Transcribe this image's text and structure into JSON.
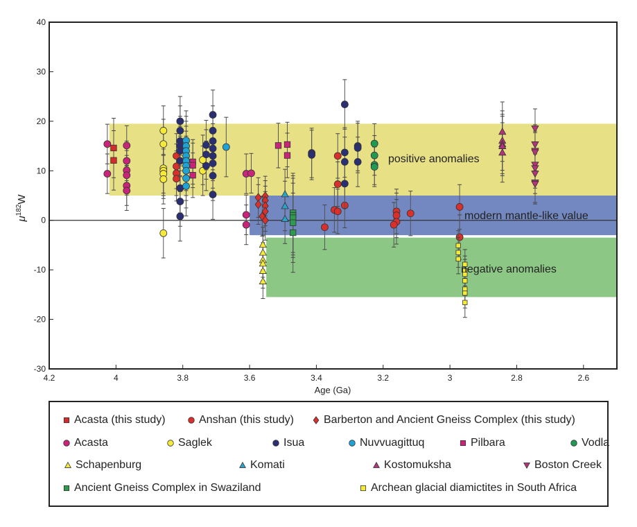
{
  "chart_data": {
    "type": "scatter",
    "title": "",
    "xlabel": "Age (Ga)",
    "ylabel": "μ182W",
    "ylabel_main": "μ",
    "ylabel_sup": "182",
    "ylabel_tail": "W",
    "xlim": [
      4.2,
      2.5
    ],
    "x_reversed": true,
    "ylim": [
      -30,
      40
    ],
    "xticks": [
      "4.2",
      "4",
      "3.8",
      "3.6",
      "3.4",
      "3.2",
      "3",
      "2.8",
      "2.6"
    ],
    "xtick_values": [
      4.2,
      4.0,
      3.8,
      3.6,
      3.4,
      3.2,
      3.0,
      2.8,
      2.6
    ],
    "yticks": [
      "-30",
      "-20",
      "-10",
      "0",
      "10",
      "20",
      "30",
      "40"
    ],
    "ytick_values": [
      -30,
      -20,
      -10,
      0,
      10,
      20,
      30,
      40
    ],
    "grid": false,
    "zero_line": true,
    "bands": [
      {
        "label": "positive anomalies",
        "x": [
          4.02,
          2.5
        ],
        "y": [
          5,
          19.5
        ],
        "color": "#e8e085"
      },
      {
        "label": "modern mantle-like value",
        "x": [
          3.6,
          2.5
        ],
        "y": [
          -3,
          5
        ],
        "color": "#7387c0"
      },
      {
        "label": "negative anomalies",
        "x": [
          3.55,
          2.5
        ],
        "y": [
          -15.5,
          -3.5
        ],
        "color": "#8dc785"
      }
    ],
    "legend_position": "below",
    "series": [
      {
        "name": "Acasta (this study)",
        "marker": "square",
        "color": "#d42b2b",
        "err": 6,
        "points": [
          [
            4.007,
            14.6
          ],
          [
            4.007,
            12.1
          ]
        ]
      },
      {
        "name": "Anshan (this study)",
        "marker": "circle",
        "color": "#d9302c",
        "err": 4.5,
        "points": [
          [
            3.819,
            13.0
          ],
          [
            3.819,
            10.9
          ],
          [
            3.819,
            9.5
          ],
          [
            3.819,
            8.4
          ],
          [
            3.375,
            -1.4
          ],
          [
            3.346,
            2.1
          ],
          [
            3.336,
            1.8
          ],
          [
            3.336,
            13.0
          ],
          [
            3.336,
            7.3
          ],
          [
            3.315,
            3.0
          ],
          [
            3.16,
            1.8
          ],
          [
            3.16,
            1.0
          ],
          [
            3.16,
            -0.3
          ],
          [
            3.168,
            -0.9
          ],
          [
            3.118,
            1.4
          ],
          [
            2.971,
            2.7
          ],
          [
            2.971,
            -3.4
          ]
        ]
      },
      {
        "name": "Barberton and Ancient Gneiss Complex (this study)",
        "marker": "diamond",
        "color": "#d9302c",
        "err": 4,
        "points": [
          [
            3.574,
            4.6
          ],
          [
            3.574,
            3.2
          ],
          [
            3.562,
            0.8
          ],
          [
            3.553,
            4.9
          ],
          [
            3.553,
            4.0
          ],
          [
            3.553,
            2.9
          ],
          [
            3.553,
            1.8
          ],
          [
            3.553,
            0.0
          ]
        ]
      },
      {
        "name": "Acasta",
        "marker": "circle",
        "color": "#c8257a",
        "err": 4,
        "points": [
          [
            4.026,
            15.4
          ],
          [
            4.026,
            9.4
          ],
          [
            3.968,
            15.1
          ],
          [
            3.968,
            12.0
          ],
          [
            3.968,
            10.1
          ],
          [
            3.968,
            9.1
          ],
          [
            3.968,
            7.0
          ],
          [
            3.968,
            6.0
          ],
          [
            3.61,
            9.4
          ],
          [
            3.61,
            1.1
          ],
          [
            3.61,
            -0.9
          ],
          [
            3.595,
            9.5
          ]
        ]
      },
      {
        "name": "Saglek",
        "marker": "circle",
        "color": "#f5e93a",
        "err": 5,
        "points": [
          [
            3.858,
            18.1
          ],
          [
            3.858,
            15.4
          ],
          [
            3.858,
            10.5
          ],
          [
            3.858,
            10.0
          ],
          [
            3.858,
            9.4
          ],
          [
            3.858,
            8.3
          ],
          [
            3.858,
            -2.6
          ],
          [
            3.74,
            12.2
          ],
          [
            3.74,
            10.0
          ]
        ]
      },
      {
        "name": "Isua",
        "marker": "circle",
        "color": "#2a2f73",
        "err": 5,
        "points": [
          [
            3.808,
            20.0
          ],
          [
            3.808,
            18.1
          ],
          [
            3.808,
            16.0
          ],
          [
            3.808,
            15.0
          ],
          [
            3.808,
            14.0
          ],
          [
            3.808,
            12.0
          ],
          [
            3.808,
            6.5
          ],
          [
            3.808,
            3.8
          ],
          [
            3.808,
            0.8
          ],
          [
            3.73,
            15.2
          ],
          [
            3.73,
            13.3
          ],
          [
            3.73,
            11.0
          ],
          [
            3.71,
            21.3
          ],
          [
            3.71,
            18.1
          ],
          [
            3.71,
            16.0
          ],
          [
            3.71,
            14.5
          ],
          [
            3.71,
            13.0
          ],
          [
            3.71,
            11.5
          ],
          [
            3.71,
            9.0
          ],
          [
            3.71,
            5.2
          ],
          [
            3.414,
            13.6
          ],
          [
            3.414,
            13.2
          ],
          [
            3.315,
            23.4
          ],
          [
            3.315,
            13.7
          ],
          [
            3.315,
            11.8
          ],
          [
            3.315,
            7.4
          ],
          [
            3.276,
            15.0
          ],
          [
            3.276,
            14.6
          ],
          [
            3.276,
            11.8
          ]
        ]
      },
      {
        "name": "Nuvvuagittuq",
        "marker": "circle",
        "color": "#1fa3d6",
        "err": 6,
        "points": [
          [
            3.79,
            16.1
          ],
          [
            3.79,
            15.0
          ],
          [
            3.79,
            14.0
          ],
          [
            3.79,
            13.0
          ],
          [
            3.79,
            12.0
          ],
          [
            3.79,
            11.0
          ],
          [
            3.79,
            10.0
          ],
          [
            3.79,
            8.5
          ],
          [
            3.79,
            6.9
          ],
          [
            3.67,
            14.8
          ]
        ]
      },
      {
        "name": "Pilbara",
        "marker": "square",
        "color": "#c8257a",
        "err": 4.5,
        "points": [
          [
            3.77,
            11.8
          ],
          [
            3.77,
            11.1
          ],
          [
            3.77,
            9.1
          ],
          [
            3.514,
            15.1
          ],
          [
            3.487,
            15.3
          ],
          [
            3.487,
            13.1
          ]
        ]
      },
      {
        "name": "Vodla",
        "marker": "circle",
        "color": "#1e9a55",
        "err": 4,
        "points": [
          [
            3.226,
            15.5
          ],
          [
            3.226,
            13.1
          ],
          [
            3.226,
            11.2
          ],
          [
            3.226,
            10.8
          ]
        ]
      },
      {
        "name": "Schapenburg",
        "marker": "triangle-up",
        "color": "#f5e93a",
        "err": 3.5,
        "points": [
          [
            3.56,
            -4.9
          ],
          [
            3.56,
            -6.5
          ],
          [
            3.56,
            -8.0
          ],
          [
            3.56,
            -8.7
          ],
          [
            3.56,
            -10.2
          ],
          [
            3.56,
            -12.3
          ]
        ]
      },
      {
        "name": "Komati",
        "marker": "triangle-up",
        "color": "#2ba3c9",
        "err": 5,
        "points": [
          [
            3.494,
            5.3
          ],
          [
            3.494,
            2.9
          ],
          [
            3.494,
            0.3
          ]
        ]
      },
      {
        "name": "Kostomuksha",
        "marker": "triangle-up",
        "color": "#b0357a",
        "err": 6,
        "points": [
          [
            2.843,
            17.9
          ],
          [
            2.843,
            16.1
          ],
          [
            2.843,
            15.4
          ],
          [
            2.843,
            15.0
          ],
          [
            2.843,
            13.7
          ]
        ]
      },
      {
        "name": "Boston Creek",
        "marker": "triangle-down",
        "color": "#b0357a",
        "err": 4,
        "points": [
          [
            2.745,
            18.5
          ],
          [
            2.745,
            15.3
          ],
          [
            2.745,
            14.0
          ],
          [
            2.745,
            13.7
          ],
          [
            2.745,
            11.2
          ],
          [
            2.745,
            10.5
          ],
          [
            2.745,
            9.4
          ],
          [
            2.745,
            7.6
          ],
          [
            2.745,
            7.3
          ]
        ]
      },
      {
        "name": "Ancient Gneiss Complex in Swaziland",
        "marker": "square",
        "color": "#2e9a50",
        "err": 8,
        "points": [
          [
            3.47,
            1.5
          ],
          [
            3.47,
            1.0
          ],
          [
            3.47,
            0.5
          ],
          [
            3.47,
            -0.5
          ],
          [
            3.47,
            -2.5
          ]
        ]
      },
      {
        "name": "Archean glacial diamictites in South Africa",
        "marker": "square",
        "color": "#f5e93a",
        "err": 3,
        "points": [
          [
            2.975,
            -5.1
          ],
          [
            2.975,
            -6.5
          ],
          [
            2.975,
            -7.8
          ],
          [
            2.955,
            -8.9
          ],
          [
            2.955,
            -10.2
          ],
          [
            2.955,
            -10.9
          ],
          [
            2.955,
            -12.2
          ],
          [
            2.955,
            -13.9
          ],
          [
            2.955,
            -14.7
          ],
          [
            2.955,
            -16.6
          ]
        ]
      }
    ]
  }
}
